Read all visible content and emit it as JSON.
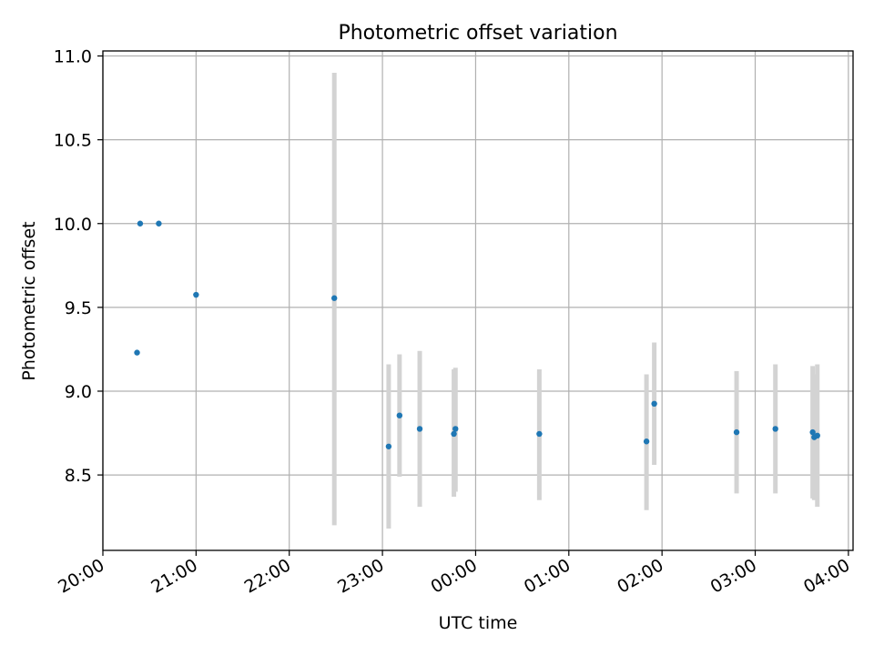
{
  "chart_data": {
    "type": "scatter",
    "title": "Photometric offset variation",
    "xlabel": "UTC time",
    "ylabel": "Photometric offset",
    "x_is_time": true,
    "x_range": [
      "20:00",
      "04:03"
    ],
    "ylim": [
      8.05,
      11.03
    ],
    "x_ticks": [
      "20:00",
      "21:00",
      "22:00",
      "23:00",
      "00:00",
      "01:00",
      "02:00",
      "03:00",
      "04:00"
    ],
    "y_ticks": [
      "8.5",
      "9.0",
      "9.5",
      "10.0",
      "10.5",
      "11.0"
    ],
    "grid": true,
    "colors": {
      "points": "#1f77b4",
      "errorbars": "#d3d3d3",
      "grid": "#b0b0b0"
    },
    "points": [
      {
        "t": "20:22",
        "y": 9.23
      },
      {
        "t": "20:24",
        "y": 10.0
      },
      {
        "t": "20:36",
        "y": 10.0
      },
      {
        "t": "21:00",
        "y": 9.575
      },
      {
        "t": "22:29",
        "y": 9.555,
        "err": [
          8.2,
          10.9
        ]
      },
      {
        "t": "23:04",
        "y": 8.67,
        "err": [
          8.18,
          9.16
        ]
      },
      {
        "t": "23:11",
        "y": 8.855,
        "err": [
          8.49,
          9.22
        ]
      },
      {
        "t": "23:24",
        "y": 8.775,
        "err": [
          8.31,
          9.24
        ]
      },
      {
        "t": "23:46",
        "y": 8.745,
        "err": [
          8.37,
          9.13
        ]
      },
      {
        "t": "23:47",
        "y": 8.775,
        "err": [
          8.4,
          9.14
        ]
      },
      {
        "t": "00:41",
        "y": 8.745,
        "err": [
          8.35,
          9.13
        ]
      },
      {
        "t": "01:50",
        "y": 8.7,
        "err": [
          8.29,
          9.1
        ]
      },
      {
        "t": "01:55",
        "y": 8.925,
        "err": [
          8.56,
          9.29
        ]
      },
      {
        "t": "02:48",
        "y": 8.755,
        "err": [
          8.39,
          9.12
        ]
      },
      {
        "t": "03:13",
        "y": 8.775,
        "err": [
          8.39,
          9.16
        ]
      },
      {
        "t": "03:37",
        "y": 8.755,
        "err": [
          8.36,
          9.15
        ]
      },
      {
        "t": "03:38",
        "y": 8.725,
        "err": [
          8.35,
          9.1
        ]
      },
      {
        "t": "03:40",
        "y": 8.735,
        "err": [
          8.31,
          9.16
        ]
      }
    ]
  }
}
